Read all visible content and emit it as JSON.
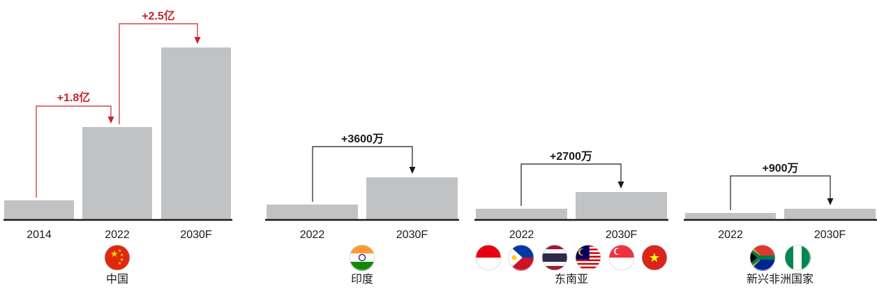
{
  "colors": {
    "bar": "#c1c2c4",
    "axis": "#1a1a1a",
    "china_arrow": "#c4242f",
    "other_arrow": "#1a1a1a"
  },
  "chart_data": {
    "type": "bar",
    "title": "",
    "ylabel": "",
    "grid": false,
    "legend": "none",
    "groups": [
      {
        "region": "中国",
        "categories": [
          "2014",
          "2022",
          "2030F"
        ],
        "values": [
          0.9,
          4.4,
          8.2
        ],
        "increments": [
          {
            "from": "2014",
            "to": "2022",
            "label": "+1.8亿"
          },
          {
            "from": "2022",
            "to": "2030F",
            "label": "+2.5亿"
          }
        ],
        "flags": [
          "china-flag-icon"
        ]
      },
      {
        "region": "印度",
        "categories": [
          "2022",
          "2030F"
        ],
        "values": [
          0.7,
          2.0
        ],
        "increments": [
          {
            "from": "2022",
            "to": "2030F",
            "label": "+3600万"
          }
        ],
        "flags": [
          "india-flag-icon"
        ]
      },
      {
        "region": "东南亚",
        "categories": [
          "2022",
          "2030F"
        ],
        "values": [
          0.5,
          1.3
        ],
        "increments": [
          {
            "from": "2022",
            "to": "2030F",
            "label": "+2700万"
          }
        ],
        "flags": [
          "indonesia-flag-icon",
          "philippines-flag-icon",
          "thailand-flag-icon",
          "malaysia-flag-icon",
          "singapore-flag-icon",
          "vietnam-flag-icon"
        ]
      },
      {
        "region": "新兴非洲国家",
        "categories": [
          "2022",
          "2030F"
        ],
        "values": [
          0.3,
          0.5
        ],
        "increments": [
          {
            "from": "2022",
            "to": "2030F",
            "label": "+900万"
          }
        ],
        "flags": [
          "south-africa-flag-icon",
          "nigeria-flag-icon"
        ]
      }
    ]
  }
}
